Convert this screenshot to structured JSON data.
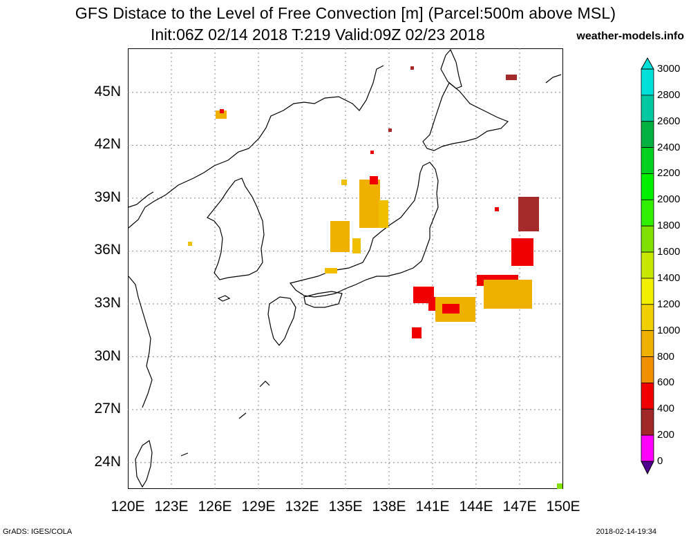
{
  "title": {
    "line1": "GFS Distace to the Level of Free Convection [m] (Parcel:500m above MSL)",
    "line2": "Init:06Z 02/14 2018 T:219 Valid:09Z 02/23 2018",
    "site": "weather-models.info"
  },
  "axes": {
    "lat_labels": [
      "45N",
      "42N",
      "39N",
      "36N",
      "33N",
      "30N",
      "27N",
      "24N"
    ],
    "lon_labels": [
      "120E",
      "123E",
      "126E",
      "129E",
      "132E",
      "135E",
      "138E",
      "141E",
      "144E",
      "147E",
      "150E"
    ],
    "lat_range": [
      22.5,
      47.5
    ],
    "lon_range": [
      120,
      150
    ]
  },
  "colorbar": {
    "labels": [
      "3000",
      "2800",
      "2600",
      "2400",
      "2200",
      "2000",
      "1800",
      "1600",
      "1400",
      "1200",
      "1000",
      "800",
      "600",
      "400",
      "200",
      "0"
    ],
    "colors": [
      "#00e0d8",
      "#00c8a0",
      "#00b040",
      "#00d020",
      "#00f000",
      "#30f000",
      "#80e000",
      "#c8e800",
      "#f0f000",
      "#f0d000",
      "#f0b000",
      "#f09000",
      "#f00000",
      "#a02828",
      "#ff00ff",
      "#500090"
    ]
  },
  "features": {
    "red": "#f00000",
    "darkred": "#a52a2a",
    "orange": "#f0a000",
    "yellow": "#f0c000"
  },
  "footer": {
    "left": "GrADS: IGES/COLA",
    "right": "2018-02-14-19:34"
  }
}
